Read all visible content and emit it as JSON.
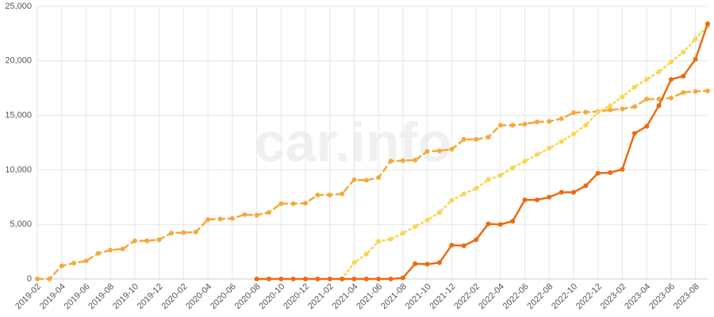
{
  "chart_data": {
    "type": "line",
    "watermark": "car.info",
    "categories": [
      "2019-02",
      null,
      "2019-04",
      null,
      "2019-06",
      null,
      "2019-08",
      null,
      "2019-10",
      null,
      "2019-12",
      null,
      "2020-02",
      null,
      "2020-04",
      null,
      "2020-06",
      null,
      "2020-08",
      null,
      "2020-10",
      null,
      "2020-12",
      null,
      "2021-02",
      null,
      "2021-04",
      null,
      "2021-06",
      null,
      "2021-08",
      null,
      "2021-10",
      null,
      "2021-12",
      null,
      "2022-02",
      null,
      "2022-04",
      null,
      "2022-06",
      null,
      "2022-08",
      null,
      "2022-10",
      null,
      "2022-12",
      null,
      "2023-02",
      null,
      "2023-04",
      null,
      "2023-06",
      null,
      "2023-08",
      null
    ],
    "ylim": [
      0,
      25000
    ],
    "yticks": [
      0,
      {
        "value": 5000,
        "label": "5,000"
      },
      {
        "value": 10000,
        "label": "10,000"
      },
      {
        "value": 15000,
        "label": "15,000"
      },
      {
        "value": 20000,
        "label": "20,000"
      },
      {
        "value": 25000,
        "label": "25,000"
      }
    ],
    "grid": true,
    "series": [
      {
        "color": "#f5a93a",
        "style": "dashed",
        "values": [
          0,
          0,
          1200,
          1450,
          1650,
          2350,
          2650,
          2750,
          3500,
          3500,
          3600,
          4200,
          4250,
          4300,
          5450,
          5500,
          5550,
          5900,
          5850,
          6100,
          6900,
          6900,
          6950,
          7700,
          7700,
          7800,
          9100,
          9050,
          9300,
          10800,
          10850,
          10900,
          11700,
          11750,
          11900,
          12800,
          12800,
          13000,
          14100,
          14100,
          14200,
          14400,
          14450,
          14700,
          15250,
          15300,
          15350,
          15500,
          15600,
          15800,
          16500,
          16500,
          16600,
          17100,
          17200,
          17250
        ]
      },
      {
        "color": "#f8d64e",
        "style": "dotted",
        "values": [
          null,
          null,
          null,
          null,
          null,
          null,
          null,
          null,
          null,
          null,
          null,
          null,
          null,
          null,
          null,
          null,
          null,
          null,
          null,
          null,
          null,
          null,
          null,
          null,
          null,
          0,
          1500,
          2300,
          3450,
          3650,
          4200,
          4800,
          5400,
          6100,
          7200,
          7800,
          8300,
          9100,
          9500,
          10200,
          10800,
          11400,
          12000,
          12600,
          13300,
          14100,
          15300,
          15900,
          16700,
          17600,
          18300,
          19000,
          19900,
          20800,
          22000,
          23200
        ]
      },
      {
        "color": "#ee6a10",
        "style": "solid",
        "values": [
          null,
          null,
          null,
          null,
          null,
          null,
          null,
          null,
          null,
          null,
          null,
          null,
          null,
          null,
          null,
          null,
          null,
          null,
          0,
          0,
          0,
          0,
          0,
          0,
          0,
          0,
          0,
          0,
          0,
          0,
          100,
          1400,
          1350,
          1500,
          3100,
          3050,
          3600,
          5050,
          5000,
          5300,
          7250,
          7250,
          7500,
          7950,
          7950,
          8550,
          9700,
          9750,
          10050,
          13350,
          14000,
          15900,
          18300,
          18600,
          20150,
          23400
        ]
      }
    ]
  }
}
